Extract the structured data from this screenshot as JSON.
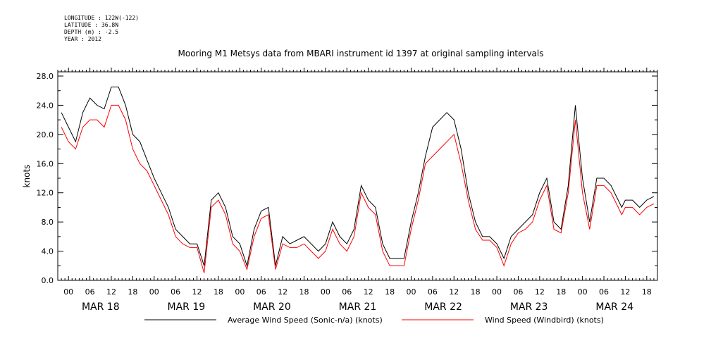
{
  "metadata": {
    "longitude": "LONGITUDE : 122W(-122)",
    "latitude": "LATITUDE : 36.8N",
    "depth": "DEPTH (m) : -2.5",
    "year": "YEAR : 2012"
  },
  "chart_data": {
    "type": "line",
    "title": "Mooring M1 Metsys data from MBARI instrument id 1397 at original sampling intervals",
    "ylabel": "knots",
    "xlabel": "",
    "ylim": [
      0,
      28
    ],
    "yticks": [
      "0.0",
      "4.0",
      "8.0",
      "12.0",
      "16.0",
      "20.0",
      "24.0",
      "28.0"
    ],
    "xlim_hours": [
      -3,
      165
    ],
    "hour_ticks": [
      "00",
      "06",
      "12",
      "18"
    ],
    "days": [
      "MAR 18",
      "MAR 19",
      "MAR 20",
      "MAR 21",
      "MAR 22",
      "MAR 23",
      "MAR 24"
    ],
    "grid": false,
    "legend_position": "bottom",
    "series": [
      {
        "name": "Average Wind Speed (Sonic-n/a) (knots)",
        "color": "#000000",
        "x_hours": [
          -2,
          0,
          2,
          4,
          6,
          8,
          10,
          12,
          14,
          16,
          18,
          20,
          22,
          24,
          26,
          28,
          30,
          32,
          34,
          36,
          38,
          40,
          42,
          44,
          46,
          48,
          50,
          52,
          54,
          56,
          58,
          60,
          62,
          64,
          66,
          68,
          70,
          72,
          74,
          76,
          78,
          80,
          82,
          84,
          86,
          88,
          90,
          92,
          94,
          96,
          98,
          100,
          102,
          104,
          106,
          108,
          110,
          112,
          114,
          116,
          118,
          120,
          122,
          124,
          126,
          128,
          130,
          132,
          134,
          136,
          138,
          140,
          142,
          144,
          146,
          148,
          150,
          152,
          154,
          155,
          156,
          158,
          160,
          162,
          164
        ],
        "y": [
          23,
          21,
          19,
          23,
          25,
          24,
          23.5,
          26.5,
          26.5,
          24,
          20,
          19,
          16.5,
          14,
          12,
          10,
          7,
          6,
          5,
          5,
          2,
          11,
          12,
          10,
          6,
          5,
          2,
          7,
          9.5,
          10,
          2,
          6,
          5,
          5.5,
          6,
          5,
          4,
          5,
          8,
          6,
          5,
          7,
          13,
          11,
          10,
          5,
          3,
          3,
          3,
          8,
          12,
          17,
          21,
          22,
          23,
          22,
          18,
          12,
          8,
          6,
          6,
          5,
          3,
          6,
          7,
          8,
          9,
          12,
          14,
          8,
          7,
          13,
          24,
          14,
          8,
          14,
          14,
          13,
          11,
          10,
          11,
          11,
          10,
          11,
          11.5
        ]
      },
      {
        "name": "Wind Speed (Windbird) (knots)",
        "color": "#ff0000",
        "x_hours": [
          -2,
          0,
          2,
          4,
          6,
          8,
          10,
          12,
          14,
          16,
          18,
          20,
          22,
          24,
          26,
          28,
          30,
          32,
          34,
          36,
          38,
          40,
          42,
          44,
          46,
          48,
          50,
          52,
          54,
          56,
          58,
          60,
          62,
          64,
          66,
          68,
          70,
          72,
          74,
          76,
          78,
          80,
          82,
          84,
          86,
          88,
          90,
          92,
          94,
          96,
          98,
          100,
          102,
          104,
          106,
          108,
          110,
          112,
          114,
          116,
          118,
          120,
          122,
          124,
          126,
          128,
          130,
          132,
          134,
          136,
          138,
          140,
          142,
          144,
          146,
          148,
          150,
          152,
          154,
          155,
          156,
          158,
          160,
          162,
          164
        ],
        "y": [
          21,
          19,
          18,
          21,
          22,
          22,
          21,
          24,
          24,
          22,
          18,
          16,
          15,
          13,
          11,
          9,
          6,
          5,
          4.5,
          4.5,
          1,
          10,
          11,
          9,
          5,
          4,
          1.5,
          6,
          8.5,
          9,
          1.5,
          5,
          4.5,
          4.5,
          5,
          4,
          3,
          4,
          7,
          5,
          4,
          6,
          12,
          10,
          9,
          4,
          2,
          2,
          2,
          7,
          11,
          16,
          17,
          18,
          19,
          20,
          16,
          11,
          7,
          5.5,
          5.5,
          4.5,
          2,
          5,
          6.5,
          7,
          8,
          11,
          13,
          7,
          6.5,
          12,
          22,
          12,
          7,
          13,
          13,
          12,
          10,
          9,
          10,
          10,
          9,
          10,
          10.5
        ]
      }
    ]
  }
}
